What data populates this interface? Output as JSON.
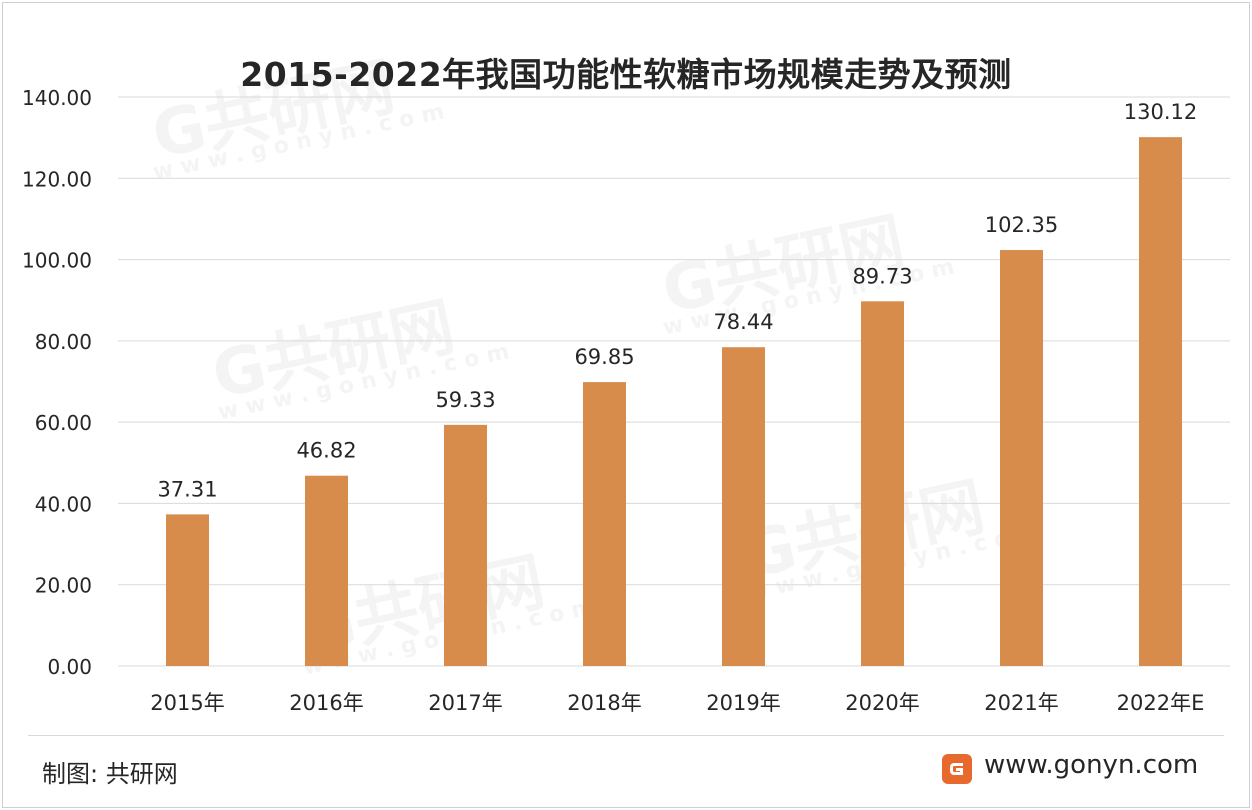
{
  "chart_data": {
    "type": "bar",
    "title": "2015-2022年我国功能性软糖市场规模走势及预测",
    "categories": [
      "2015年",
      "2016年",
      "2017年",
      "2018年",
      "2019年",
      "2020年",
      "2021年",
      "2022年E"
    ],
    "values": [
      37.31,
      46.82,
      59.33,
      69.85,
      78.44,
      89.73,
      102.35,
      130.12
    ],
    "data_labels": [
      "37.31",
      "46.82",
      "59.33",
      "69.85",
      "78.44",
      "89.73",
      "102.35",
      "130.12"
    ],
    "yticks": [
      "0.00",
      "20.00",
      "40.00",
      "60.00",
      "80.00",
      "100.00",
      "120.00",
      "140.00"
    ],
    "ylim": [
      0,
      140
    ],
    "xlabel": "",
    "ylabel": "",
    "grid": true,
    "bar_color": "#D88C4C"
  },
  "footer": {
    "source": "制图: 共研网",
    "website": "www.gonyn.com"
  },
  "watermark": {
    "brand": "G共研网",
    "url": "w w w . g o n y n . c o m"
  },
  "colors": {
    "bar": "#D88C4C",
    "grid": "#d9d9d9",
    "logo": "#E8692E"
  }
}
